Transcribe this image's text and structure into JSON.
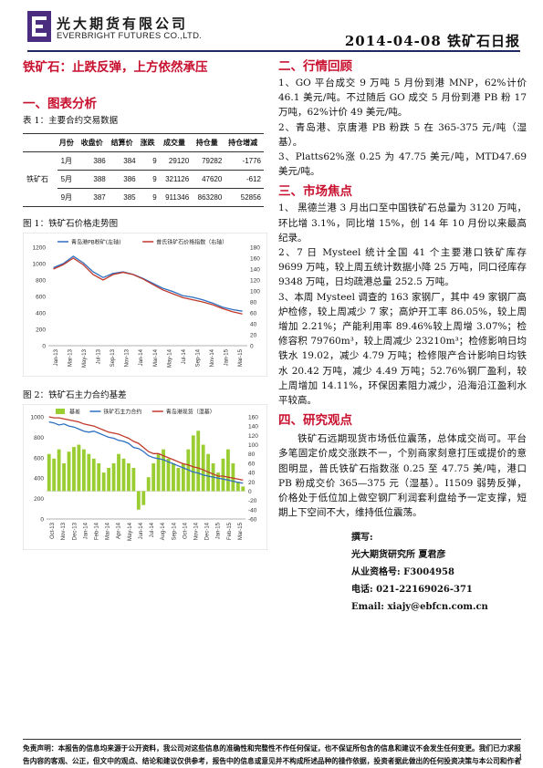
{
  "header": {
    "company_cn": "光大期货有限公司",
    "company_en": "EVERBRIGHT FUTURES CO.,LTD.",
    "date_title": "2014-04-08 铁矿石日报",
    "logo_color": "#4b2d7f"
  },
  "main_title": "铁矿石：止跌反弹，上方依然承压",
  "section1": {
    "heading": "一、图表分析",
    "table_caption": "表 1：主要合约交易数据",
    "table": {
      "headers": [
        "月份",
        "收盘价",
        "结算价",
        "涨跌",
        "成交量",
        "持仓量",
        "持仓增减"
      ],
      "row_label": "铁矿石",
      "rows": [
        [
          "1月",
          "386",
          "384",
          "9",
          "29120",
          "79282",
          "-1776"
        ],
        [
          "5月",
          "388",
          "386",
          "9",
          "321126",
          "47620",
          "-612"
        ],
        [
          "9月",
          "387",
          "385",
          "9",
          "911346",
          "863280",
          "52856"
        ]
      ]
    }
  },
  "chart1": {
    "caption": "图 1：铁矿石价格走势图",
    "chart_data": {
      "type": "line",
      "series": [
        {
          "name": "青岛港PB粉矿(左轴)",
          "color": "#2e6fc0",
          "axis": "left",
          "values": [
            950,
            1000,
            1090,
            1010,
            900,
            830,
            880,
            900,
            870,
            820,
            760,
            700,
            660,
            610,
            590,
            560,
            520,
            470,
            440,
            420
          ]
        },
        {
          "name": "普氏铁矿石价格指数（右轴）",
          "color": "#c0392b",
          "axis": "right",
          "values": [
            140,
            148,
            160,
            148,
            130,
            120,
            130,
            134,
            130,
            122,
            112,
            102,
            95,
            88,
            84,
            80,
            75,
            68,
            62,
            58
          ]
        }
      ],
      "x_ticks": [
        "Jan-13",
        "Mar-13",
        "May-13",
        "Jul-13",
        "Sep-13",
        "Nov-13",
        "Jan-14",
        "Mar-14",
        "May-14",
        "Jul-14",
        "Sep-14",
        "Nov-14",
        "Jan-15",
        "Mar-15"
      ],
      "ylim_left": [
        0,
        1200
      ],
      "yticks_left": [
        0,
        200,
        400,
        600,
        800,
        1000,
        1200
      ],
      "ylim_right": [
        0,
        180
      ],
      "yticks_right": [
        0,
        20,
        40,
        60,
        80,
        100,
        120,
        140,
        160,
        180
      ],
      "legend": "top"
    }
  },
  "chart2": {
    "caption": "图 2：铁矿石主力合约基差",
    "chart_data": {
      "type": "bar",
      "series": [
        {
          "name": "基差",
          "color": "#9acd32",
          "axis": "right",
          "kind": "bar",
          "values": [
            80,
            70,
            90,
            60,
            85,
            95,
            100,
            90,
            80,
            70,
            60,
            40,
            50,
            60,
            80,
            70,
            60,
            50,
            -40,
            -30,
            30,
            60,
            80,
            90,
            70,
            60,
            50,
            60,
            90,
            120,
            130,
            100,
            80,
            60,
            40,
            70,
            90,
            60,
            20,
            10
          ]
        },
        {
          "name": "铁矿石主力合约",
          "color": "#2e6fc0",
          "axis": "left",
          "kind": "line",
          "values": [
            950,
            940,
            920,
            930,
            910,
            900,
            880,
            860,
            850,
            860,
            840,
            820,
            800,
            790,
            770,
            760,
            740,
            700,
            690,
            660,
            620,
            600,
            590,
            580,
            560,
            540,
            520,
            500,
            480,
            460,
            450,
            430,
            420,
            410,
            400,
            390,
            380,
            370,
            360,
            350
          ]
        },
        {
          "name": "青岛港现货（湿基）",
          "color": "#c0392b",
          "axis": "left",
          "kind": "line",
          "values": [
            1000,
            990,
            990,
            980,
            970,
            960,
            950,
            930,
            920,
            910,
            890,
            870,
            850,
            840,
            830,
            810,
            790,
            760,
            740,
            700,
            660,
            640,
            640,
            620,
            600,
            580,
            560,
            540,
            530,
            510,
            500,
            480,
            460,
            440,
            420,
            420,
            410,
            400,
            390,
            380
          ]
        }
      ],
      "x_ticks": [
        "Oct-13",
        "Nov-13",
        "Dec-13",
        "Jan-14",
        "Feb-14",
        "Mar-14",
        "Apr-14",
        "May-14",
        "Jun-14",
        "Jul-14",
        "Aug-14",
        "Sep-14",
        "Oct-14",
        "Nov-14",
        "Dec-14",
        "Jan-15",
        "Feb-15",
        "Mar-15"
      ],
      "ylim_left": [
        0,
        1000
      ],
      "yticks_left": [
        0,
        200,
        400,
        600,
        800,
        1000
      ],
      "ylim_right": [
        -60,
        160
      ],
      "yticks_right": [
        -60,
        -40,
        -20,
        0,
        20,
        40,
        60,
        80,
        100,
        120,
        140,
        160
      ],
      "legend": "top"
    }
  },
  "section2": {
    "heading": "二、行情回顾",
    "items": [
      "1、GO 平台成交 9 万吨 5 月份到港 MNP，62%计价 46.1 美元/吨。不过随后 GO 成交 5 月份到港 PB 粉 17 万吨，62%计价 49 美元/吨。",
      "2、青岛港、京唐港 PB 粉跌 5 在 365-375 元/吨（湿基）。",
      "3、Platts62%涨 0.25 为 47.75 美元/吨，MTD47.69 美元/吨。"
    ]
  },
  "section3": {
    "heading": "三、市场焦点",
    "items": [
      "1、 黑德兰港 3 月出口至中国铁矿石总量为 3120 万吨，环比增 3.1%，同比增 15%，创 14 年 10 月份以来最高纪录。",
      "2、7 日 Mysteel 统计全国 41 个主要港口铁矿库存 9699 万吨，较上周五统计数据小降 25 万吨，同口径库存 9348 万吨，日均疏港总量 252.5 万吨。",
      "3、本周 Mysteel 调查的 163 家钢厂，其中 49 家钢厂高炉检修，较上周减少 7 家；高炉开工率 86.05%，较上周增加 2.21%；产能利用率 89.46%较上周增 3.07%；检修容积 79760m³，较上周减少 23210m³；检修影响日均铁水 19.02，减少 4.79 万吨；检修限产合计影响日均铁水 20.42 万吨，减少 4.49 万吨；52.76%钢厂盈利，较上周增加 14.11%，环保因素阻力减少，沿海沿江盈利水平较高。"
    ]
  },
  "section4": {
    "heading": "四、研究观点",
    "text": "铁矿石远期现货市场低位震荡，总体成交尚可。平台多笔固定价成交涨跌不一，个别商家刻意打压或提价的意图明显，普氏铁矿石指数涨 0.25 至 47.75 美/吨，港口 PB 粉成交价 365—375 元（湿基）。I1509 弱势反弹，价格处于低位加上做空钢厂利润套利盘给予一定支撑，短期上下空间不大，维持低位震荡。"
  },
  "author": {
    "label": "撰写:",
    "line1": "光大期货研究所 夏君彦",
    "line2": "从业资格号: F3004958",
    "line3": "电话: 021-22169026-371",
    "line4": "Email: xiajy@ebfcn.com.cn"
  },
  "disclaimer": "免责声明：本报告的信息均来源于公开资料，我公司对这些信息的准确性和完整性不作任何保证，也不保证所包含的信息和建议不会发生任何变更。我们已力求报告内容的客观、公正，但文中的观点、结论和建议仅供参考，报告中的信息或意见并不构成所述品种的操作依据，投资者据此做出的任何投资决策与本公司和作者无关",
  "page_number": "1"
}
